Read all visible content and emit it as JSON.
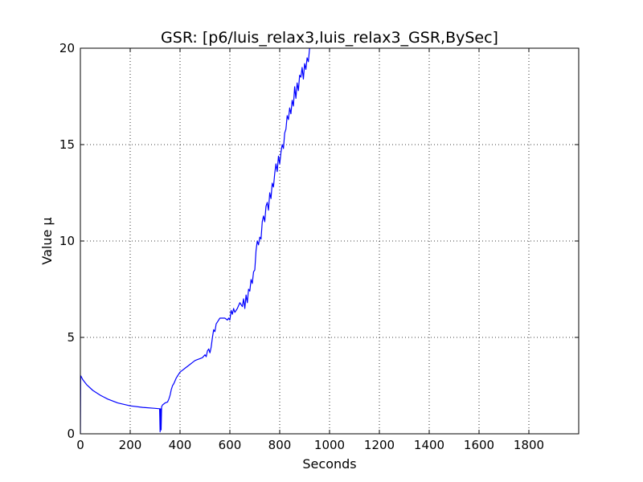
{
  "chart_data": {
    "type": "line",
    "title": "GSR: [p6/luis_relax3,luis_relax3_GSR,BySec]",
    "xlabel": "Seconds",
    "ylabel": "Value µ",
    "xlim": [
      0,
      2000
    ],
    "ylim": [
      0,
      20
    ],
    "xticks": [
      0,
      200,
      400,
      600,
      800,
      1000,
      1200,
      1400,
      1600,
      1800
    ],
    "yticks": [
      0,
      5,
      10,
      15,
      20
    ],
    "grid": true,
    "series": [
      {
        "color": "#0000ff",
        "x": [
          0,
          1,
          2,
          10,
          25,
          50,
          80,
          110,
          150,
          200,
          250,
          300,
          318,
          320,
          322,
          324,
          326,
          330,
          340,
          350,
          355,
          360,
          365,
          370,
          375,
          380,
          385,
          390,
          395,
          400,
          410,
          420,
          430,
          440,
          450,
          460,
          470,
          480,
          490,
          500,
          505,
          510,
          515,
          520,
          525,
          530,
          535,
          540,
          545,
          550,
          560,
          570,
          580,
          590,
          595,
          600,
          605,
          610,
          615,
          620,
          630,
          640,
          650,
          655,
          660,
          665,
          670,
          675,
          680,
          685,
          690,
          695,
          700,
          705,
          710,
          715,
          720,
          725,
          730,
          735,
          740,
          745,
          750,
          755,
          760,
          765,
          770,
          775,
          780,
          785,
          790,
          795,
          800,
          805,
          810,
          815,
          820,
          825,
          830,
          835,
          840,
          845,
          850,
          855,
          860,
          865,
          870,
          875,
          880,
          885,
          890,
          895,
          900,
          905,
          910,
          915,
          920,
          925,
          930,
          935,
          940
        ],
        "y": [
          0.0,
          3.0,
          3.0,
          2.8,
          2.55,
          2.25,
          2.0,
          1.8,
          1.6,
          1.45,
          1.37,
          1.32,
          1.3,
          0.1,
          1.3,
          0.2,
          1.4,
          1.5,
          1.6,
          1.65,
          1.8,
          2.0,
          2.3,
          2.5,
          2.6,
          2.75,
          2.9,
          3.0,
          3.1,
          3.2,
          3.3,
          3.4,
          3.5,
          3.6,
          3.7,
          3.8,
          3.85,
          3.9,
          3.95,
          4.1,
          4.0,
          4.3,
          4.4,
          4.2,
          4.5,
          5.0,
          5.4,
          5.3,
          5.7,
          5.8,
          6.0,
          6.0,
          6.0,
          5.9,
          6.0,
          5.9,
          6.4,
          6.2,
          6.5,
          6.3,
          6.5,
          6.8,
          6.6,
          7.0,
          6.5,
          7.2,
          6.8,
          7.5,
          7.4,
          8.0,
          7.8,
          8.4,
          8.5,
          9.5,
          10.0,
          9.8,
          10.2,
          10.1,
          11.0,
          11.3,
          11.0,
          11.8,
          12.0,
          11.6,
          12.5,
          12.2,
          13.0,
          12.8,
          13.5,
          14.0,
          13.6,
          14.4,
          14.0,
          14.6,
          15.0,
          14.8,
          15.6,
          15.8,
          16.5,
          16.3,
          16.9,
          16.6,
          17.3,
          17.0,
          18.0,
          17.4,
          18.2,
          17.8,
          18.6,
          18.5,
          19.0,
          18.4,
          19.2,
          18.9,
          19.5,
          19.3,
          20.0,
          20.2,
          20.4,
          20.6,
          20.8
        ]
      }
    ]
  }
}
